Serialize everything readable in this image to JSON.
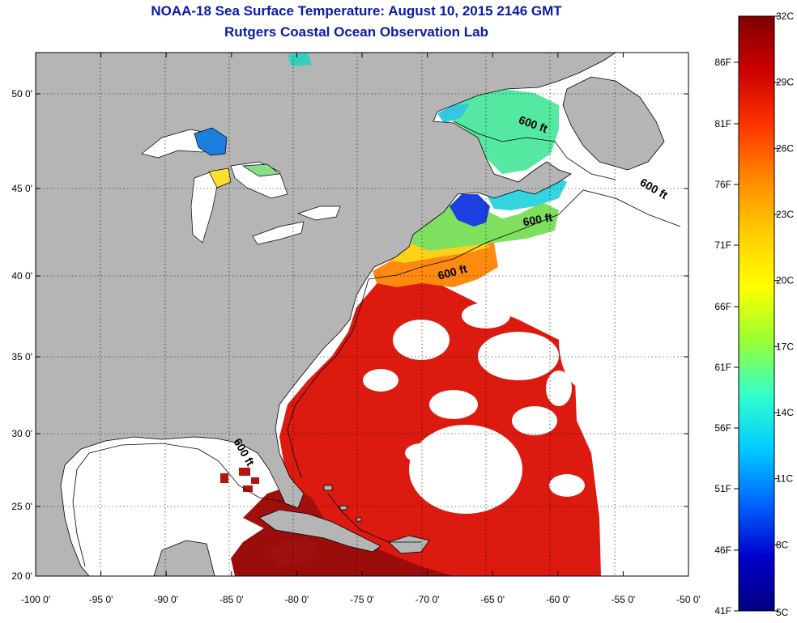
{
  "title": {
    "line1": "NOAA-18 Sea Surface Temperature:  August 10, 2015 2146 GMT",
    "line2": "Rutgers Coastal Ocean Observation Lab"
  },
  "axes": {
    "lon_labels": [
      "-100 0'",
      "-95 0'",
      "-90 0'",
      "-85 0'",
      "-80 0'",
      "-75 0'",
      "-70 0'",
      "-65 0'",
      "-60 0'",
      "-55 0'",
      "-50 0'"
    ],
    "lon_values": [
      -100,
      -95,
      -90,
      -85,
      -80,
      -75,
      -70,
      -65,
      -60,
      -55,
      -50
    ],
    "lat_labels": [
      "50 0'",
      "45 0'",
      "40 0'",
      "35 0'",
      "30 0'",
      "25 0'",
      "20 0'"
    ],
    "lat_values": [
      50,
      45,
      40,
      35,
      30,
      25,
      20
    ]
  },
  "isobath_labels": [
    {
      "text": "600 ft",
      "lon": -62.0,
      "lat": 48.2
    },
    {
      "text": "600 ft",
      "lon": -52.8,
      "lat": 44.8
    },
    {
      "text": "600 ft",
      "lon": -61.5,
      "lat": 43.0
    },
    {
      "text": "600 ft",
      "lon": -68.0,
      "lat": 40.0
    },
    {
      "text": "600 ft",
      "lon": -84.3,
      "lat": 28.6
    }
  ],
  "colorbar": {
    "fahrenheit": [
      "86F",
      "81F",
      "76F",
      "71F",
      "66F",
      "61F",
      "56F",
      "51F",
      "46F",
      "41F"
    ],
    "celsius": [
      "32C",
      "29C",
      "26C",
      "23C",
      "20C",
      "17C",
      "14C",
      "11C",
      "8C",
      "5C"
    ],
    "colors": [
      "#800000",
      "#cc0000",
      "#ff3300",
      "#ff8800",
      "#ffcc00",
      "#ffff00",
      "#99ff33",
      "#33ffcc",
      "#00ccff",
      "#0066ff",
      "#0000cc",
      "#000080"
    ]
  },
  "colors": {
    "land": "#b5b5b5",
    "ocean_nodata": "#ffffff",
    "title": "#0a1aa8"
  }
}
